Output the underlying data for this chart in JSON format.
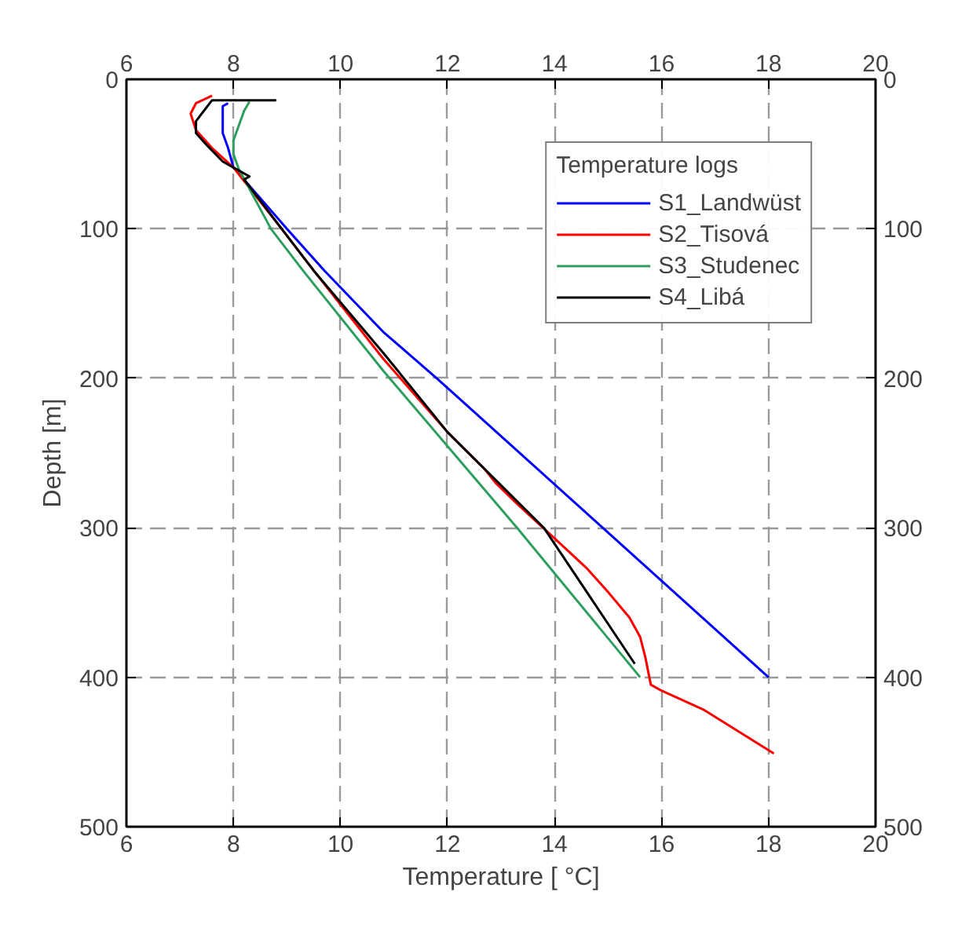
{
  "chart_data": {
    "type": "line",
    "xlabel": "Temperature [ °C]",
    "ylabel": "Depth [m]",
    "legend_title": "Temperature logs",
    "xlim": [
      6,
      20
    ],
    "xticks": [
      6,
      8,
      10,
      12,
      14,
      16,
      18,
      20
    ],
    "x2lim": [
      6,
      20
    ],
    "x2ticks": [
      6,
      8,
      10,
      12,
      14,
      16,
      18,
      20
    ],
    "ylim": [
      500,
      0
    ],
    "yticks": [
      0,
      100,
      200,
      300,
      400,
      500
    ],
    "y2lim": [
      500,
      0
    ],
    "y2ticks": [
      0,
      100,
      200,
      300,
      400,
      500
    ],
    "grid": true,
    "legend": "top right",
    "marker": "none",
    "line_style": "solid",
    "series": [
      {
        "name": "S1_Landwüst",
        "color": "#0000ff",
        "x": [
          7.9,
          7.8,
          7.8,
          7.9,
          8.0,
          9.0,
          9.7,
          10.8,
          11.8,
          14.9,
          18.0
        ],
        "values": [
          16,
          18,
          36,
          46,
          59,
          100,
          128,
          169,
          200,
          300,
          400
        ]
      },
      {
        "name": "S2_Tisová",
        "color": "#ff0000",
        "x": [
          7.6,
          7.3,
          7.2,
          7.3,
          7.6,
          8.0,
          8.9,
          9.5,
          10.8,
          12.0,
          12.7,
          12.9,
          13.3,
          14.0,
          14.6,
          15.0,
          15.4,
          15.6,
          15.7,
          15.8,
          16.0,
          16.8,
          18.1
        ],
        "values": [
          11,
          16,
          23,
          34,
          46,
          59,
          100,
          128,
          187,
          236,
          261,
          270,
          284,
          307,
          327,
          343,
          360,
          373,
          387,
          405,
          409,
          422,
          451
        ]
      },
      {
        "name": "S3_Studenec",
        "color": "#2e9e5e",
        "x": [
          8.3,
          8.2,
          8.0,
          8.0,
          8.1,
          8.7,
          9.3,
          10.8,
          13.3,
          15.6
        ],
        "values": [
          15,
          21,
          41,
          50,
          60,
          100,
          128,
          195,
          300,
          400
        ]
      },
      {
        "name": "S4_Libá",
        "color": "#000000",
        "x": [
          8.8,
          7.6,
          7.3,
          7.3,
          7.5,
          7.8,
          8.0,
          8.3,
          8.2,
          8.9,
          9.5,
          10.8,
          12.0,
          13.8,
          15.5
        ],
        "values": [
          14,
          14,
          28,
          36,
          44,
          55,
          59,
          65,
          67,
          100,
          128,
          183,
          236,
          300,
          391
        ]
      }
    ]
  }
}
